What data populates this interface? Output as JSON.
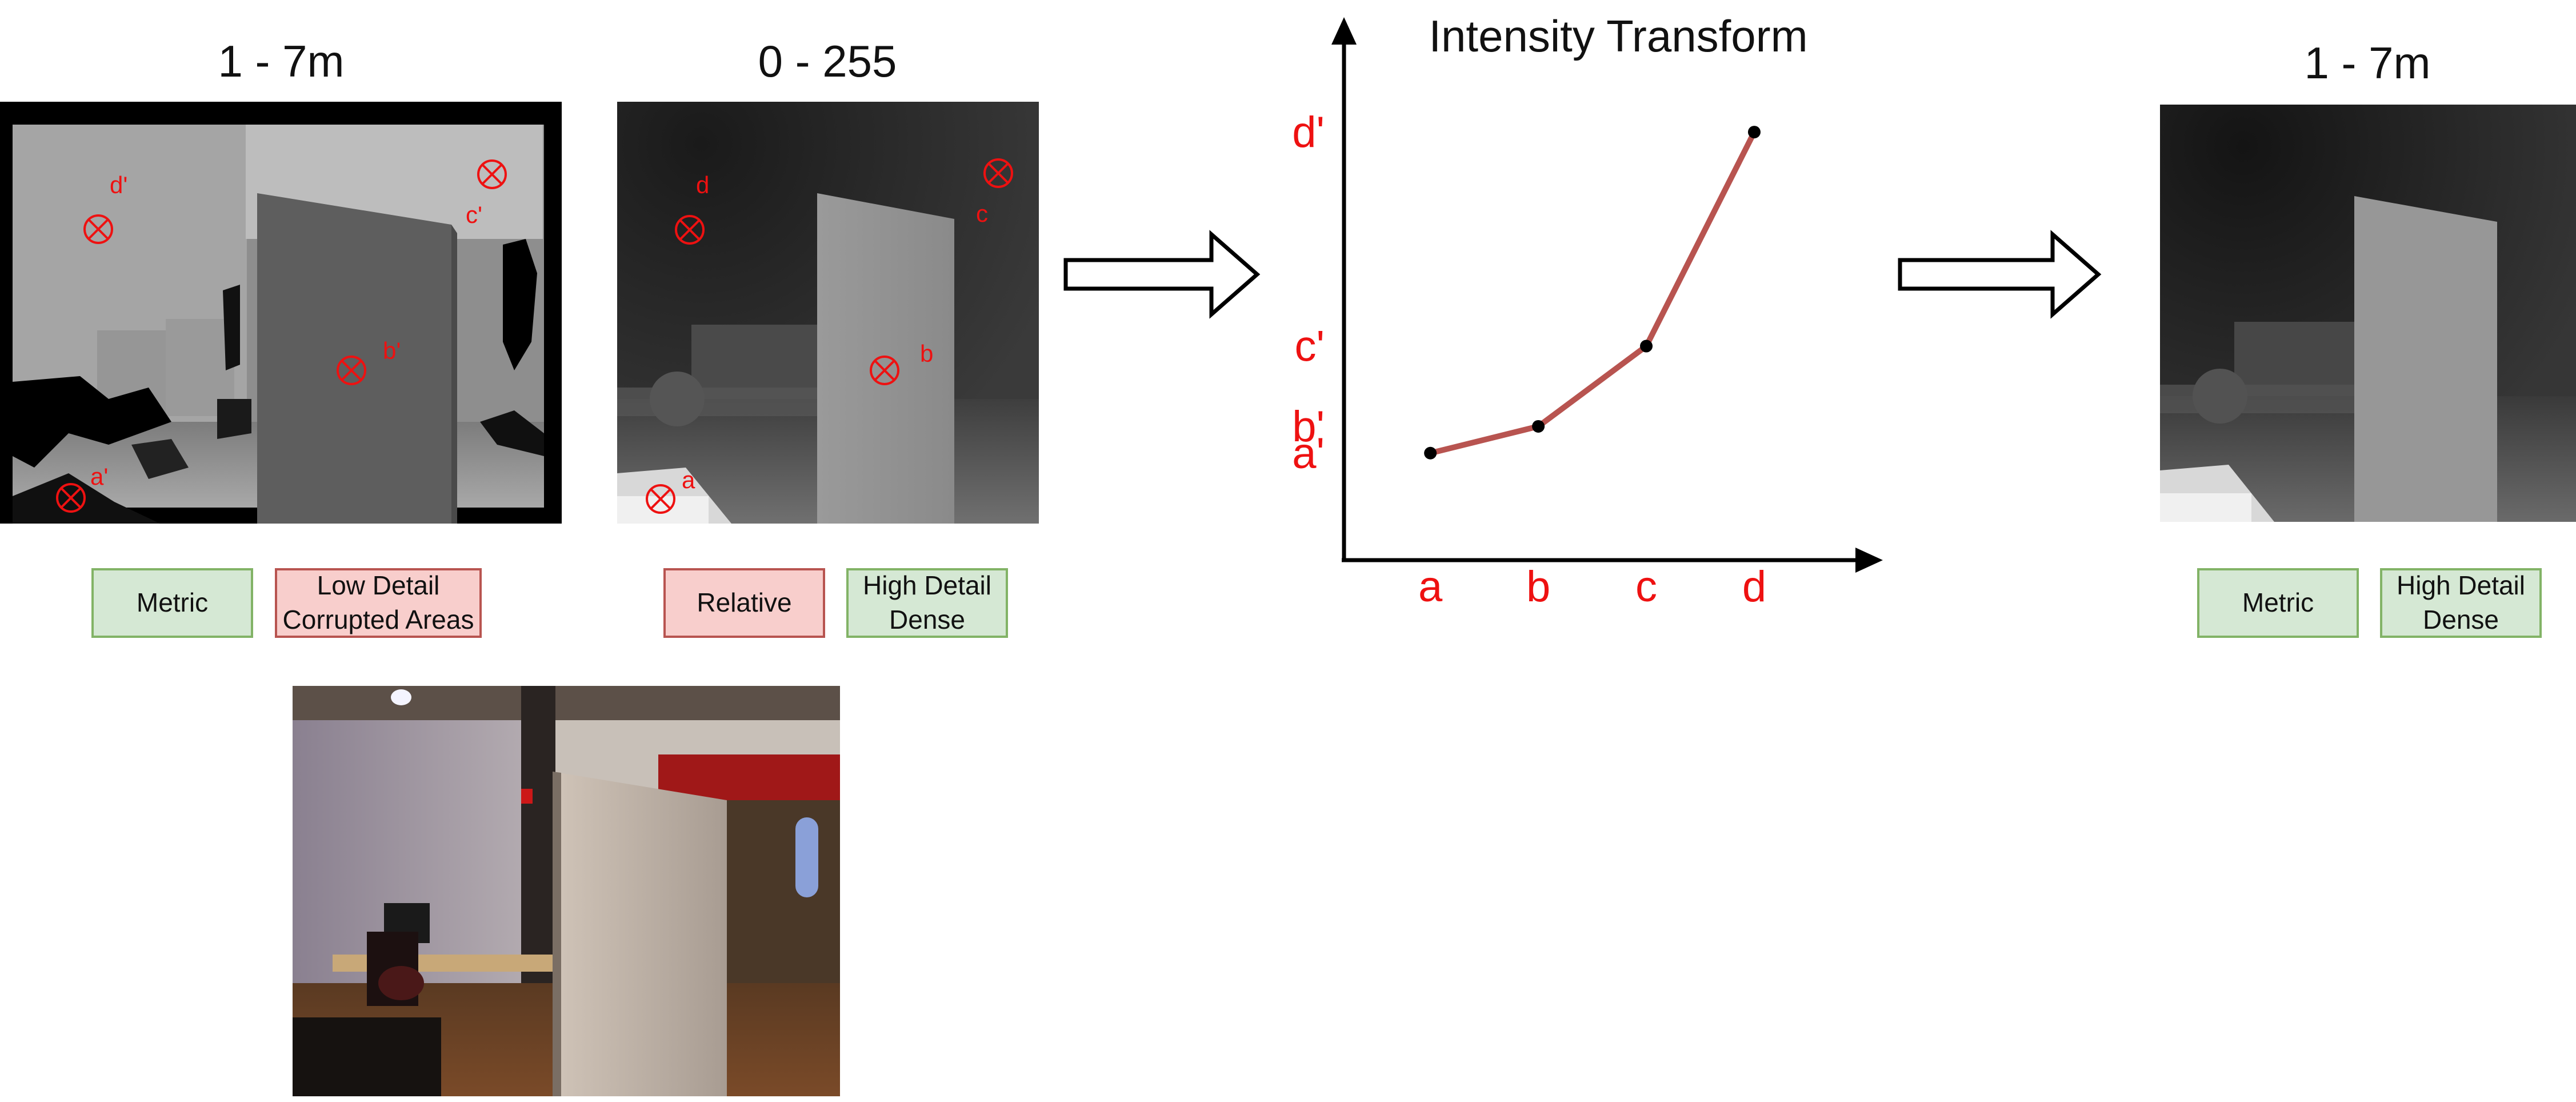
{
  "panels": {
    "sensor_depth": {
      "title": "1 - 7m",
      "tags": [
        "Metric",
        "Low Detail\nCorrupted Areas"
      ],
      "markers": [
        "a'",
        "b'",
        "c'",
        "d'"
      ]
    },
    "relative_depth": {
      "title": "0 - 255",
      "tags": [
        "Relative",
        "High Detail\nDense"
      ],
      "markers": [
        "a",
        "b",
        "c",
        "d"
      ]
    },
    "output_depth": {
      "title": "1 - 7m",
      "tags": [
        "Metric",
        "High Detail\nDense"
      ]
    },
    "rgb_photo": {
      "description_icon": "office-photo"
    }
  },
  "chart_data": {
    "type": "line",
    "title": "Intensity Transform",
    "x_tick_labels": [
      "a",
      "b",
      "c",
      "d"
    ],
    "y_tick_labels": [
      "a'",
      "b'",
      "c'",
      "d'"
    ],
    "series": [
      {
        "points": [
          [
            1,
            1
          ],
          [
            2,
            1.5
          ],
          [
            3,
            3
          ],
          [
            4,
            7
          ]
        ]
      }
    ],
    "x_range": [
      0.2,
      4.9
    ],
    "y_range": [
      -1,
      8.4
    ],
    "line_color": "#b85450",
    "point_color": "#000000",
    "tick_label_color": "#ee1111"
  },
  "colors": {
    "accent": "#ee1111",
    "good": "#d5e8d4",
    "bad": "#f8cecc"
  }
}
